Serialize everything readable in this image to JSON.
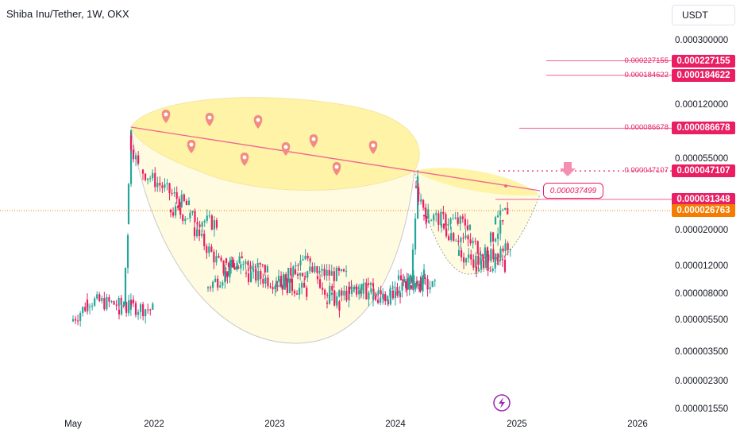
{
  "header": {
    "title": "Shiba Inu/Tether, 1W, OKX",
    "currency": "USDT"
  },
  "colors": {
    "up": "#26a69a",
    "down": "#e91e63",
    "level_line": "#f06292",
    "current": "#f57c00",
    "cup_fill": "#fff9c4"
  },
  "chart_data": {
    "type": "candlestick",
    "title": "Shiba Inu/Tether, 1W, OKX",
    "x_ticks": [
      "May",
      "2022",
      "2023",
      "2024",
      "2025",
      "2026"
    ],
    "y_ticks": [
      "0.000300000",
      "0.000120000",
      "0.000055000",
      "0.000020000",
      "0.000012000",
      "0.000008000",
      "0.000005500",
      "0.000003500",
      "0.000002300",
      "0.000001550"
    ],
    "y_scale": "log",
    "ylim": [
      1.55e-06,
      0.0003
    ],
    "price_levels": [
      {
        "name": "level-1",
        "value": "0.000227155"
      },
      {
        "name": "level-2",
        "value": "0.000184622"
      },
      {
        "name": "level-3",
        "value": "0.000086678"
      },
      {
        "name": "level-4",
        "value": "0.000047107"
      },
      {
        "name": "level-5",
        "value": "0.000031348"
      },
      {
        "name": "current",
        "value": "0.000026763"
      }
    ],
    "annotation": "0.000037499",
    "pattern": "cup and handle"
  }
}
